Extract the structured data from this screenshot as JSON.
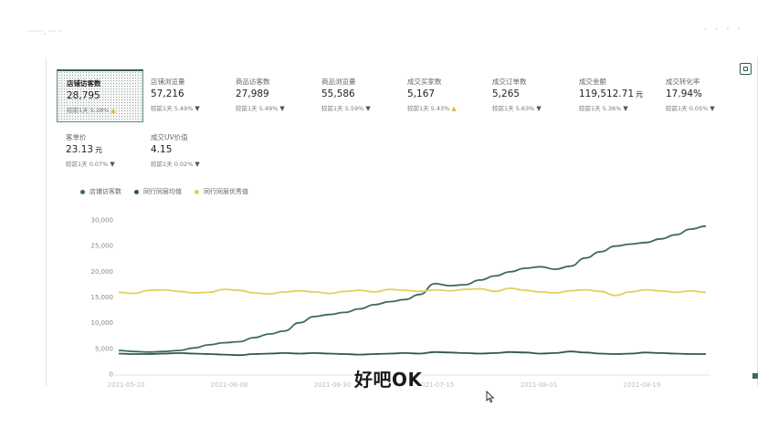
{
  "top": {
    "breadcrumb": "·······, ··· ··",
    "watermark": "· · · ·"
  },
  "metrics": [
    {
      "label": "店铺访客数",
      "value": "28,795",
      "unit": "",
      "cmp": "较前1天 5.38%",
      "dir": "up",
      "active": true
    },
    {
      "label": "店铺浏览量",
      "value": "57,216",
      "unit": "",
      "cmp": "较前1天 5.49%",
      "dir": "down",
      "active": false
    },
    {
      "label": "商品访客数",
      "value": "27,989",
      "unit": "",
      "cmp": "较前1天 5.49%",
      "dir": "down",
      "active": false
    },
    {
      "label": "商品浏览量",
      "value": "55,586",
      "unit": "",
      "cmp": "较前1天 5.59%",
      "dir": "down",
      "active": false
    },
    {
      "label": "成交买家数",
      "value": "5,167",
      "unit": "",
      "cmp": "较前1天 5.43%",
      "dir": "up",
      "active": false
    },
    {
      "label": "成交订单数",
      "value": "5,265",
      "unit": "",
      "cmp": "较前1天 5.63%",
      "dir": "down",
      "active": false
    },
    {
      "label": "成交金额",
      "value": "119,512.71",
      "unit": "元",
      "cmp": "较前1天 5.36%",
      "dir": "down",
      "active": false
    },
    {
      "label": "成交转化率",
      "value": "17.94%",
      "unit": "",
      "cmp": "较前1天 0.05%",
      "dir": "down",
      "active": false
    },
    {
      "label": "客单价",
      "value": "23.13",
      "unit": "元",
      "cmp": "较前1天 0.07%",
      "dir": "down",
      "active": false
    },
    {
      "label": "成交UV价值",
      "value": "4.15",
      "unit": "",
      "cmp": "较前1天 0.02%",
      "dir": "down",
      "active": false
    }
  ],
  "legend": [
    {
      "label": "店铺访客数",
      "color": "#3c6b5c"
    },
    {
      "label": "同行同层均值",
      "color": "#2f5a4c"
    },
    {
      "label": "同行同层优秀值",
      "color": "#e3cf5e"
    }
  ],
  "subtitle": "好吧OK",
  "icons": {
    "corner": "fullscreen-icon",
    "cursor": "mouse-cursor-icon",
    "arrow_up": "▲",
    "arrow_down": "▼"
  },
  "chart_data": {
    "type": "line",
    "ylim": [
      0,
      30000
    ],
    "y_ticks": [
      "30,000",
      "25,000",
      "20,000",
      "15,000",
      "10,000",
      "5,000",
      "0"
    ],
    "x_ticks": [
      "2021-05-20",
      "2021-06-08",
      "2021-06-30",
      "2021-07-15",
      "2021-08-01",
      "2021-08-19"
    ],
    "series": [
      {
        "name": "店铺访客数",
        "color": "#3c6b5c",
        "values": [
          4600,
          4400,
          4300,
          4400,
          4600,
          5100,
          5700,
          6100,
          6300,
          7100,
          7800,
          8400,
          10000,
          11200,
          11600,
          12000,
          12700,
          13500,
          14100,
          14500,
          15500,
          17600,
          17200,
          17400,
          18300,
          19100,
          19900,
          20600,
          20900,
          20400,
          21000,
          22600,
          23800,
          24900,
          25300,
          25600,
          26300,
          27100,
          28200,
          28795
        ]
      },
      {
        "name": "同行同层均值",
        "color": "#2f5a4c",
        "values": [
          4000,
          3900,
          3900,
          4000,
          4100,
          4000,
          3900,
          3800,
          3700,
          3900,
          4000,
          4100,
          4000,
          4100,
          4000,
          3900,
          3800,
          3900,
          4000,
          4100,
          4000,
          4300,
          4200,
          4100,
          4000,
          4100,
          4300,
          4200,
          4000,
          4100,
          4400,
          4200,
          4000,
          3900,
          4000,
          4200,
          4100,
          4000,
          3900,
          3900
        ]
      },
      {
        "name": "同行同层优秀值",
        "color": "#e3cf5e",
        "values": [
          15900,
          15700,
          16300,
          16400,
          16100,
          15800,
          15900,
          16500,
          16300,
          15800,
          15600,
          16000,
          16200,
          16000,
          15700,
          16100,
          16300,
          16000,
          16500,
          16300,
          16100,
          16400,
          16200,
          16500,
          16600,
          16100,
          16700,
          16300,
          16000,
          15800,
          16200,
          16400,
          16100,
          15300,
          16000,
          16400,
          16200,
          15900,
          16200,
          15900
        ]
      }
    ]
  }
}
